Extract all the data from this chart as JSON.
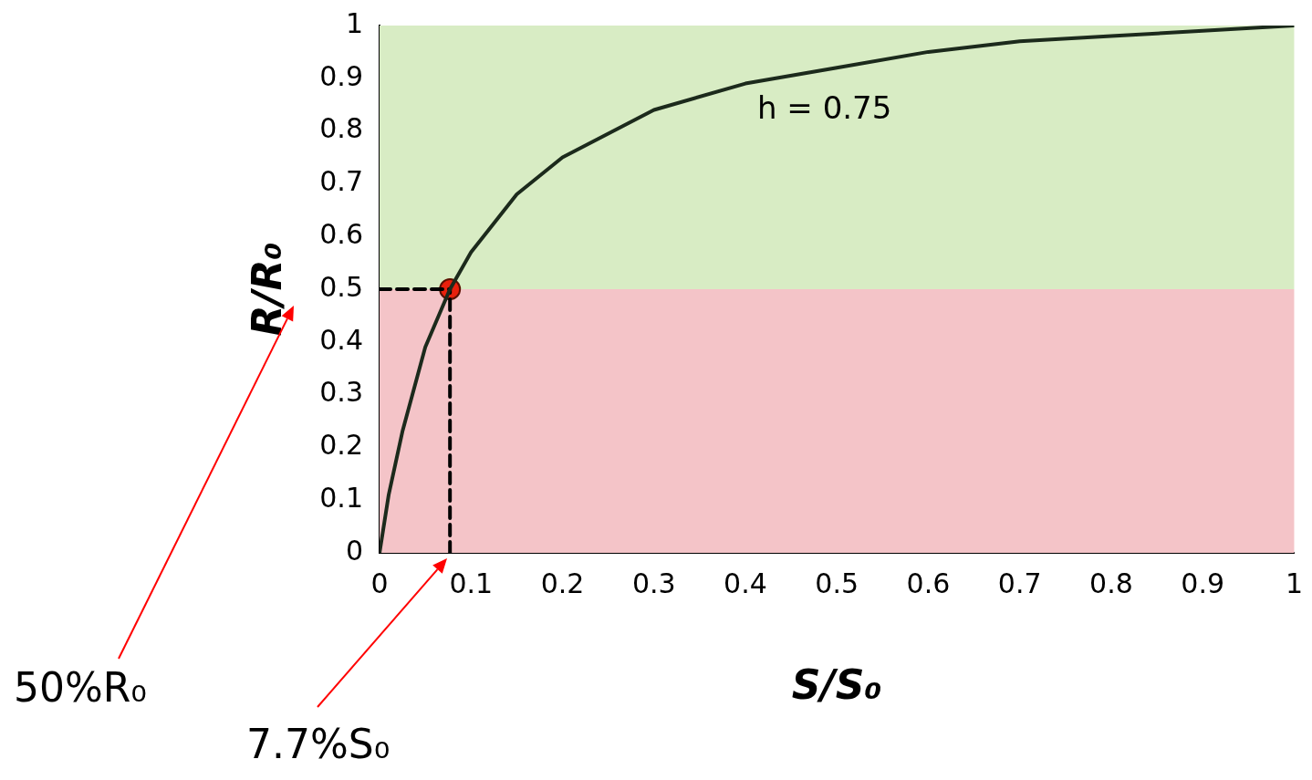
{
  "chart_data": {
    "type": "line",
    "xlabel": "S/S₀",
    "ylabel": "R/R₀",
    "xlim": [
      0,
      1
    ],
    "ylim": [
      0,
      1
    ],
    "xticks": [
      0,
      0.1,
      0.2,
      0.3,
      0.4,
      0.5,
      0.6,
      0.7,
      0.8,
      0.9,
      1
    ],
    "yticks": [
      0,
      0.1,
      0.2,
      0.3,
      0.4,
      0.5,
      0.6,
      0.7,
      0.8,
      0.9,
      1
    ],
    "grid": false,
    "legend": false,
    "bands": [
      {
        "axis": "y",
        "from": 0.5,
        "to": 1,
        "color": "#d8ecc4"
      },
      {
        "axis": "y",
        "from": 0,
        "to": 0.5,
        "color": "#f4c4c8"
      }
    ],
    "series": [
      {
        "color": "#1c2a1c",
        "marker": "none",
        "line_style": "solid",
        "x": [
          0,
          0.01,
          0.025,
          0.05,
          0.077,
          0.1,
          0.15,
          0.2,
          0.3,
          0.4,
          0.5,
          0.6,
          0.7,
          0.8,
          0.9,
          1
        ],
        "values": [
          0,
          0.11,
          0.23,
          0.39,
          0.5,
          0.57,
          0.68,
          0.75,
          0.84,
          0.89,
          0.92,
          0.95,
          0.97,
          0.98,
          0.99,
          1
        ]
      },
      {
        "type": "line",
        "color": "#000000",
        "marker": "none",
        "line_style": "dashed",
        "x": [
          0,
          0.077
        ],
        "values": [
          0.5,
          0.5
        ]
      },
      {
        "type": "line",
        "color": "#000000",
        "marker": "none",
        "line_style": "dashed",
        "x": [
          0.077,
          0.077
        ],
        "values": [
          0,
          0.5
        ]
      },
      {
        "type": "scatter",
        "color": "#e8200c",
        "marker": "circle",
        "x": [
          0.077
        ],
        "values": [
          0.5
        ]
      }
    ],
    "annotations": [
      "h = 0.75",
      "50%R₀",
      "7.7%S₀"
    ]
  }
}
